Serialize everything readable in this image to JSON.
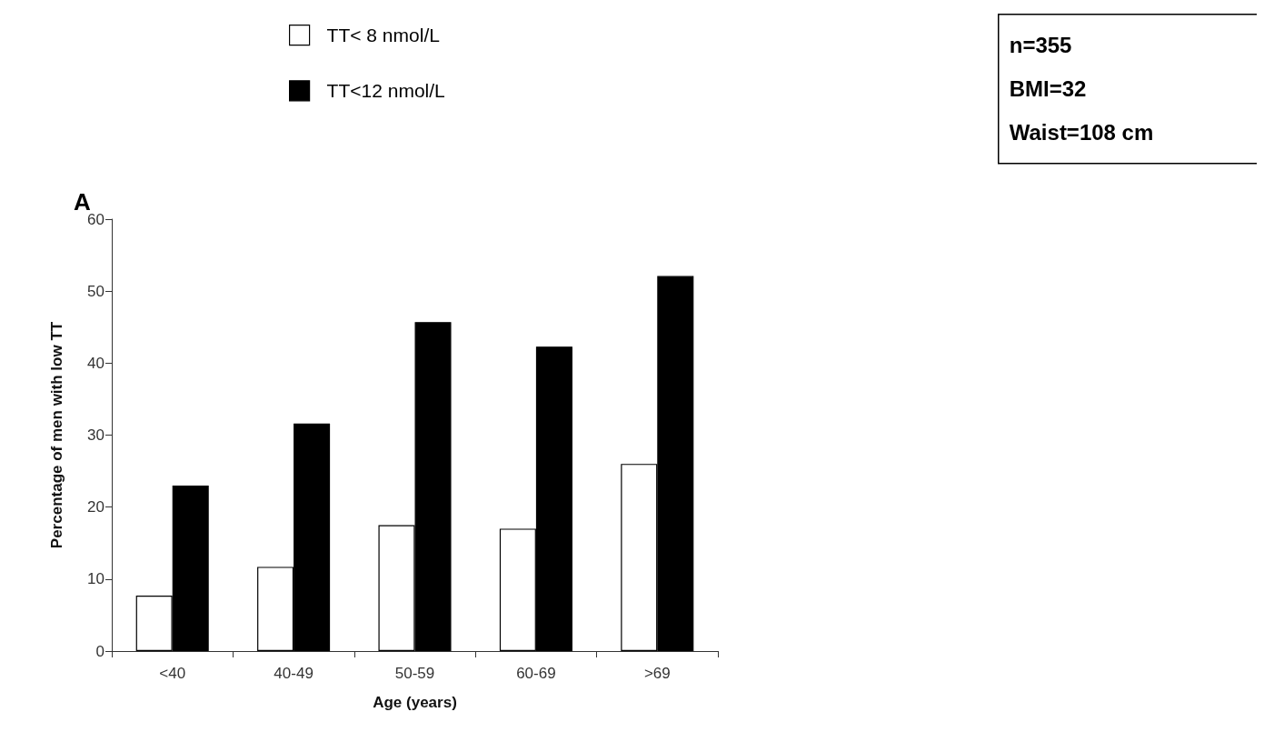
{
  "chart_data": {
    "type": "bar",
    "title": "A",
    "xlabel": "Age (years)",
    "ylabel": "Percentage of men with low TT",
    "categories": [
      "<40",
      "40-49",
      "50-59",
      "60-69",
      ">69"
    ],
    "series": [
      {
        "name": "TT< 8 nmol/L",
        "color": "#ffffff",
        "values": [
          7.7,
          11.7,
          17.5,
          17,
          26
        ]
      },
      {
        "name": "TT<12 nmol/L",
        "color": "#000000",
        "values": [
          23,
          31.6,
          45.7,
          42.3,
          52.1
        ]
      }
    ],
    "ylim": [
      0,
      60
    ],
    "yticks": [
      0,
      10,
      20,
      30,
      40,
      50,
      60
    ],
    "grid": false,
    "legend": "top left",
    "annotations": [
      "n=355",
      "BMI=32",
      "Waist=108 cm"
    ]
  }
}
